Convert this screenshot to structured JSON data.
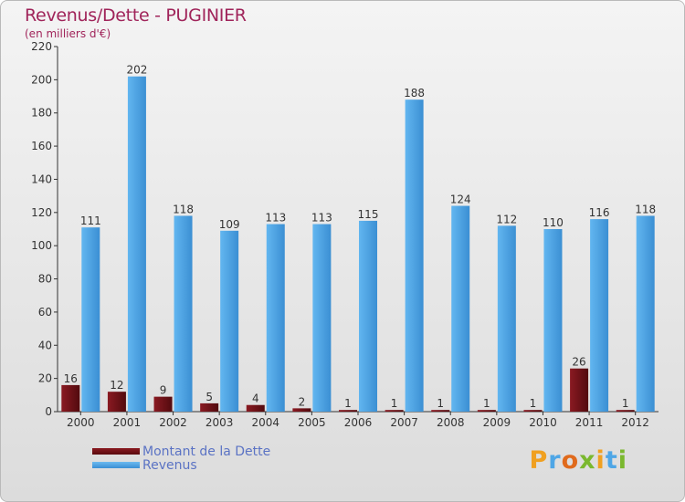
{
  "title": "Revenus/Dette - PUGINIER",
  "subtitle": "(en milliers d'€)",
  "legend": {
    "debt_label": "Montant de la Dette",
    "revenue_label": "Revenus"
  },
  "logo": {
    "text": "Proxiti"
  },
  "colors": {
    "debt": "#6b0c12",
    "revenue": "#4ea6e6",
    "title": "#a0245a",
    "legend_text": "#5b73c4"
  },
  "chart_data": {
    "type": "bar",
    "title": "Revenus/Dette - PUGINIER",
    "ylabel": "(en milliers d'€)",
    "xlabel": "",
    "ylim": [
      0,
      220
    ],
    "yticks": [
      0,
      20,
      40,
      60,
      80,
      100,
      120,
      140,
      160,
      180,
      200,
      220
    ],
    "grid": false,
    "legend_position": "bottom-left",
    "categories": [
      "2000",
      "2001",
      "2002",
      "2003",
      "2004",
      "2005",
      "2006",
      "2007",
      "2008",
      "2009",
      "2010",
      "2011",
      "2012"
    ],
    "series": [
      {
        "name": "Montant de la Dette",
        "values": [
          16,
          12,
          9,
          5,
          4,
          2,
          1,
          1,
          1,
          1,
          1,
          26,
          1
        ]
      },
      {
        "name": "Revenus",
        "values": [
          111,
          202,
          118,
          109,
          113,
          113,
          115,
          188,
          124,
          112,
          110,
          116,
          118
        ]
      }
    ]
  }
}
